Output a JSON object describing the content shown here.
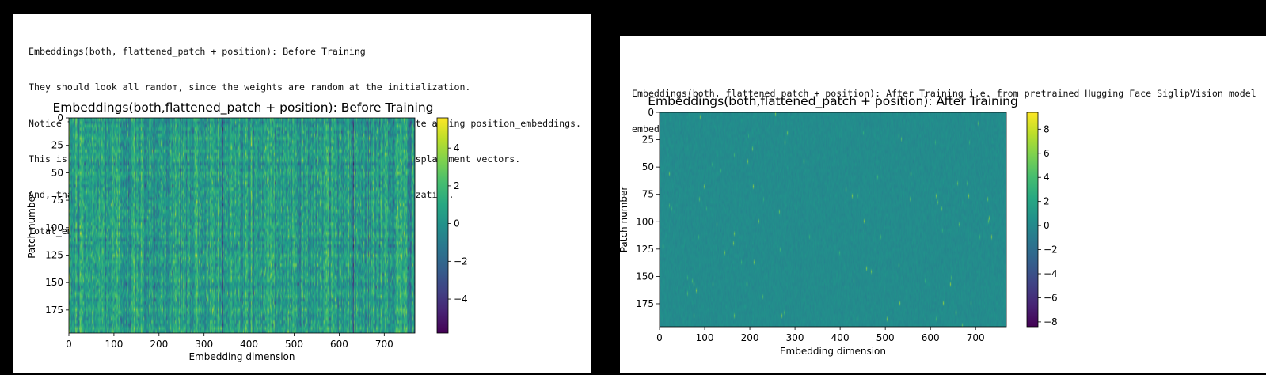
{
  "panels": [
    {
      "output_lines": [
        "Embeddings(both, flattened_patch + position): Before Training",
        "They should look all random, since the weights are random at the initialization.",
        "Notice total_embeddings look pretty similar to patch_embeddings, despite adding position_embeddings.",
        "This is likely because position_embeddings are supposed to be small displacement vectors.",
        "And, that the change they have caused is not visible in such a visualization.",
        "total_embeds_viz.shape = (196, 768)"
      ]
    },
    {
      "output_lines": [
        "Embeddings(both, flattened_patch + position): After Training i.e. from pretrained Hugging Face SiglipVision model",
        "embeds_viz = (196, 768)"
      ]
    }
  ],
  "chart_data": [
    {
      "type": "heatmap",
      "title": "Embeddings(both,flattened_patch + position): Before Training",
      "xlabel": "Embedding dimension",
      "ylabel": "Patch number",
      "shape": [
        196,
        768
      ],
      "xlim": [
        0,
        768
      ],
      "ylim": [
        196,
        0
      ],
      "xticks": [
        0,
        100,
        200,
        300,
        400,
        500,
        600,
        700
      ],
      "yticks": [
        0,
        25,
        50,
        75,
        100,
        125,
        150,
        175
      ],
      "colormap": "viridis",
      "colorbar_range": [
        -5.8,
        5.6
      ],
      "colorbar_ticks": [
        {
          "value": 4,
          "label": "4"
        },
        {
          "value": 2,
          "label": "2"
        },
        {
          "value": 0,
          "label": "0"
        },
        {
          "value": -2,
          "label": "−2"
        },
        {
          "value": -4,
          "label": "−4"
        }
      ],
      "appearance": "random noise, values mostly between -2 and 3, vertical streaks"
    },
    {
      "type": "heatmap",
      "title": "Embeddings(both,flattened_patch + position): After Training",
      "xlabel": "Embedding dimension",
      "ylabel": "Patch number",
      "shape": [
        196,
        768
      ],
      "xlim": [
        0,
        768
      ],
      "ylim": [
        196,
        0
      ],
      "xticks": [
        0,
        100,
        200,
        300,
        400,
        500,
        600,
        700
      ],
      "yticks": [
        0,
        25,
        50,
        75,
        100,
        125,
        150,
        175
      ],
      "colormap": "viridis",
      "colorbar_range": [
        -8.4,
        9.4
      ],
      "colorbar_ticks": [
        {
          "value": 8,
          "label": "8"
        },
        {
          "value": 6,
          "label": "6"
        },
        {
          "value": 4,
          "label": "4"
        },
        {
          "value": 2,
          "label": "2"
        },
        {
          "value": 0,
          "label": "0"
        },
        {
          "value": -2,
          "label": "−2"
        },
        {
          "value": -4,
          "label": "−4"
        },
        {
          "value": -6,
          "label": "−6"
        },
        {
          "value": -8,
          "label": "−8"
        }
      ],
      "appearance": "nearly uniform near 0, faint sparse outliers"
    }
  ]
}
